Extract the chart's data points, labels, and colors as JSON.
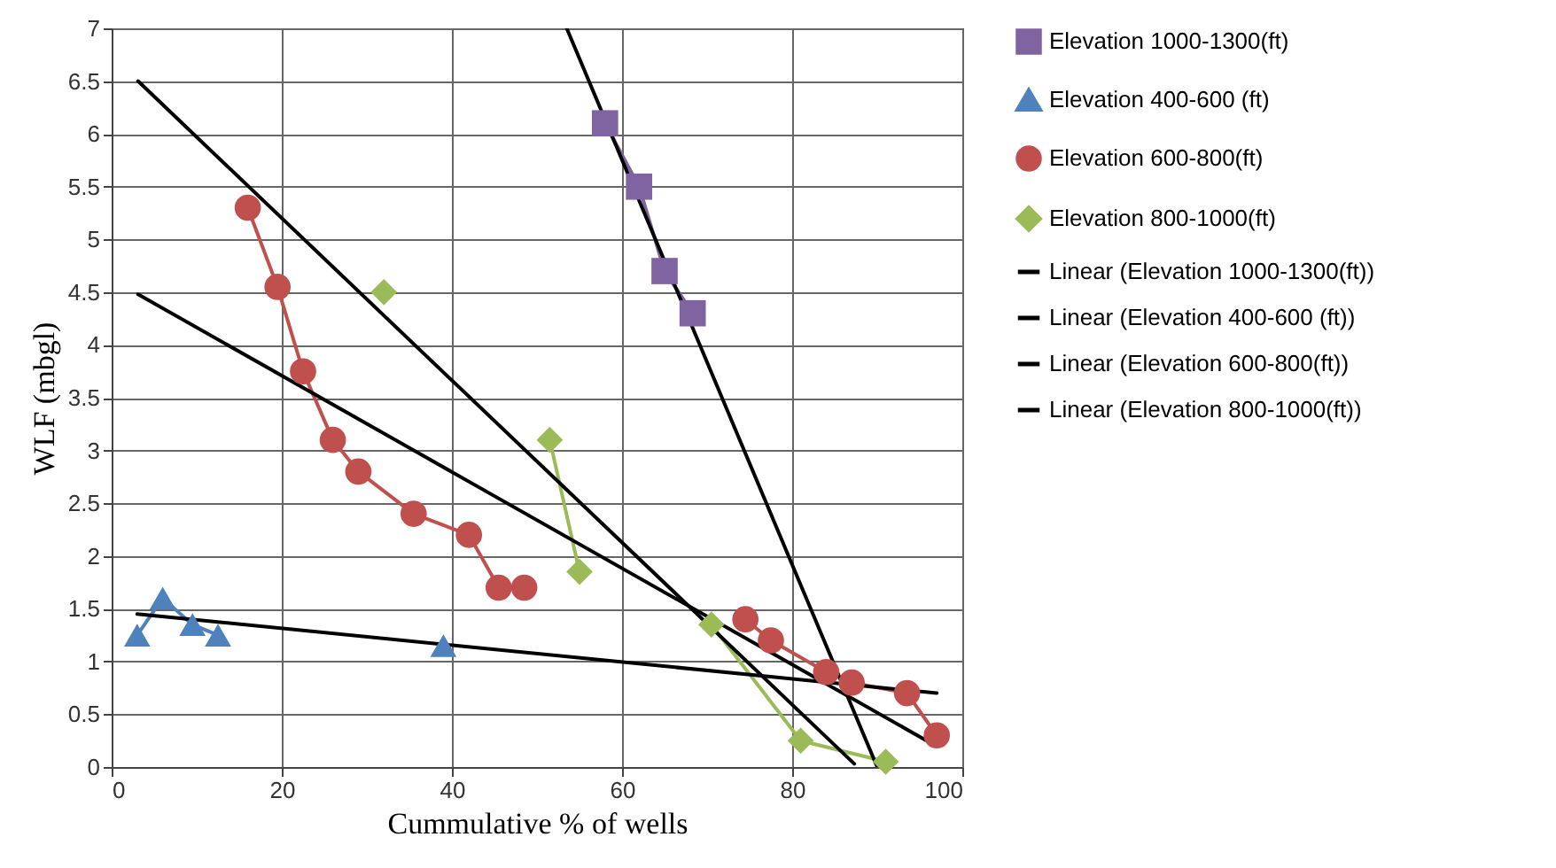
{
  "chart_data": {
    "type": "line",
    "xlabel": "Cummulative % of wells",
    "ylabel": "WLF (mbgl)",
    "xlim": [
      0,
      100
    ],
    "xticks": [
      0,
      20,
      40,
      60,
      80,
      100
    ],
    "ylim": [
      0,
      7
    ],
    "yticks": [
      0,
      0.5,
      1,
      1.5,
      2,
      2.5,
      3,
      3.5,
      4,
      4.5,
      5,
      5.5,
      6,
      6.5,
      7
    ],
    "grid": true,
    "legend": "right",
    "series": [
      {
        "name": "Elevation 1000-1300(ft)",
        "color": "#8064a2",
        "marker": "square",
        "x": [
          58,
          62,
          65,
          68.3
        ],
        "values": [
          6.1,
          5.5,
          4.7,
          4.3
        ]
      },
      {
        "name": "Elevation  400-600 (ft)",
        "color": "#4f81bd",
        "marker": "triangle",
        "x": [
          3,
          6,
          9.5,
          12.5,
          25,
          39
        ],
        "values": [
          1.25,
          1.6,
          1.35,
          1.25,
          null,
          1.15
        ]
      },
      {
        "name": "Elevation 600-800(ft)",
        "color": "#c0504d",
        "marker": "circle",
        "x": [
          16,
          19.5,
          22.5,
          26,
          29,
          35.5,
          42,
          45.5,
          48.5,
          60,
          74.5,
          77.5,
          84,
          87,
          93.5,
          97
        ],
        "values": [
          5.3,
          4.55,
          3.75,
          3.1,
          2.8,
          2.4,
          2.2,
          1.7,
          1.7,
          null,
          1.4,
          1.2,
          0.9,
          0.8,
          0.7,
          0.3
        ]
      },
      {
        "name": "Elevation 800-1000(ft)",
        "color": "#9bbb59",
        "marker": "diamond",
        "x": [
          32,
          40,
          51.5,
          55,
          62,
          70.5,
          81,
          91
        ],
        "values": [
          4.5,
          null,
          3.1,
          1.85,
          null,
          1.35,
          0.25,
          0.05
        ]
      },
      {
        "name": "Linear (Elevation 1000-1300(ft))",
        "color": "#000000",
        "marker": "none",
        "x": [
          53.5,
          90
        ],
        "values": [
          7,
          0
        ]
      },
      {
        "name": "Linear (Elevation  400-600 (ft))",
        "color": "#000000",
        "marker": "none",
        "x": [
          3,
          97
        ],
        "values": [
          1.45,
          0.7
        ]
      },
      {
        "name": "Linear (Elevation 600-800(ft))",
        "color": "#000000",
        "marker": "none",
        "x": [
          3.1,
          96.9
        ],
        "values": [
          4.48,
          0.2
        ]
      },
      {
        "name": "Linear (Elevation 800-1000(ft))",
        "color": "#000000",
        "marker": "none",
        "x": [
          3.1,
          87.3
        ],
        "values": [
          6.5,
          0.03
        ]
      }
    ]
  }
}
